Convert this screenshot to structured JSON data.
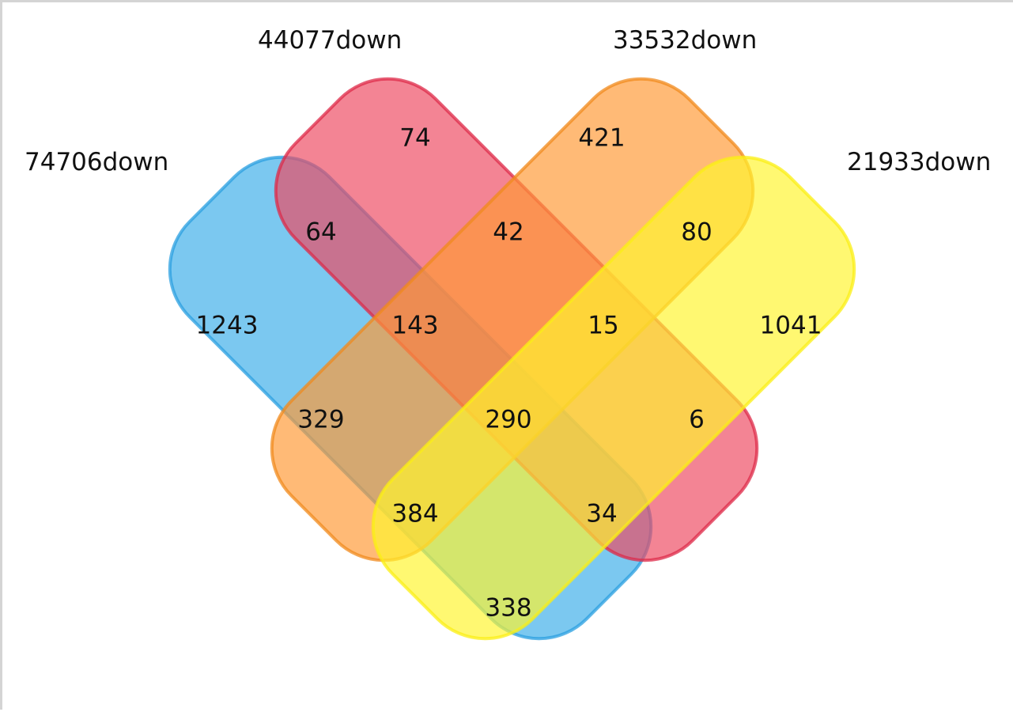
{
  "chart_data": {
    "type": "venn",
    "sets": [
      {
        "name": "74706down",
        "color": "#3daee9",
        "stroke": "#2a9fe0"
      },
      {
        "name": "44077down",
        "color": "#ee4a62",
        "stroke": "#dd2a48"
      },
      {
        "name": "33532down",
        "color": "#ff9935",
        "stroke": "#f08a1c"
      },
      {
        "name": "21933down",
        "color": "#fff52e",
        "stroke": "#fbef14"
      }
    ],
    "regions": [
      {
        "sets": [
          "44077down"
        ],
        "value": "74"
      },
      {
        "sets": [
          "33532down"
        ],
        "value": "421"
      },
      {
        "sets": [
          "74706down",
          "44077down"
        ],
        "value": "64"
      },
      {
        "sets": [
          "44077down",
          "33532down"
        ],
        "value": "42"
      },
      {
        "sets": [
          "33532down",
          "21933down"
        ],
        "value": "80"
      },
      {
        "sets": [
          "74706down"
        ],
        "value": "1243"
      },
      {
        "sets": [
          "74706down",
          "44077down",
          "33532down"
        ],
        "value": "143"
      },
      {
        "sets": [
          "44077down",
          "33532down",
          "21933down"
        ],
        "value": "15"
      },
      {
        "sets": [
          "21933down"
        ],
        "value": "1041"
      },
      {
        "sets": [
          "74706down",
          "33532down"
        ],
        "value": "329"
      },
      {
        "sets": [
          "74706down",
          "44077down",
          "33532down",
          "21933down"
        ],
        "value": "290"
      },
      {
        "sets": [
          "44077down",
          "21933down"
        ],
        "value": "6"
      },
      {
        "sets": [
          "74706down",
          "33532down",
          "21933down"
        ],
        "value": "384"
      },
      {
        "sets": [
          "74706down",
          "44077down",
          "21933down"
        ],
        "value": "34"
      },
      {
        "sets": [
          "74706down",
          "21933down"
        ],
        "value": "338"
      }
    ]
  }
}
